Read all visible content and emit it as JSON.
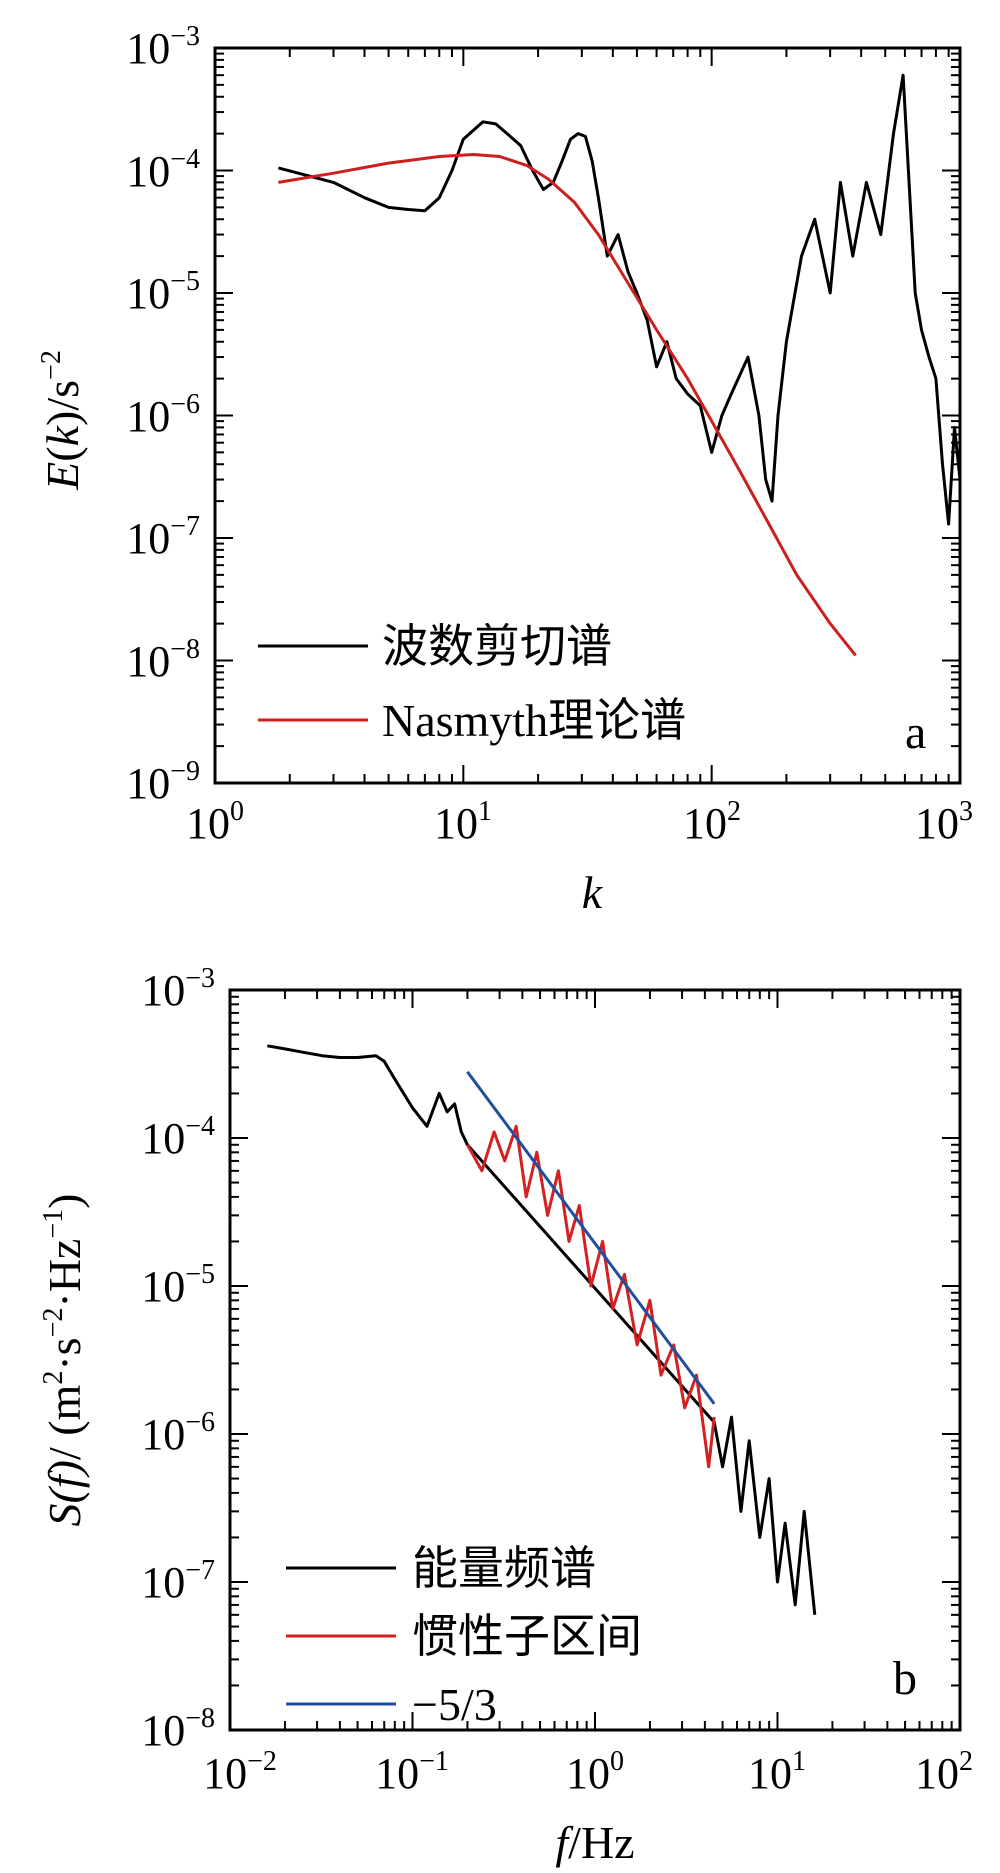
{
  "chart_data": [
    {
      "type": "line",
      "panel_letter": "a",
      "xlabel_italic": "k",
      "ylabel": "E(k)/s",
      "ylabel_italic": "k",
      "ylabel_unit_exp": "−2",
      "x_scale": "log",
      "y_scale": "log",
      "xlim": [
        1,
        1000
      ],
      "ylim": [
        1e-09,
        0.001
      ],
      "x_ticks": [
        {
          "base": "10",
          "exp": "0",
          "value": 1
        },
        {
          "base": "10",
          "exp": "1",
          "value": 10
        },
        {
          "base": "10",
          "exp": "2",
          "value": 100
        },
        {
          "base": "10",
          "exp": "3",
          "value": 1000
        }
      ],
      "y_ticks": [
        {
          "base": "10",
          "exp": "−3",
          "value": 0.001
        },
        {
          "base": "10",
          "exp": "−4",
          "value": 0.0001
        },
        {
          "base": "10",
          "exp": "−5",
          "value": 1e-05
        },
        {
          "base": "10",
          "exp": "−6",
          "value": 1e-06
        },
        {
          "base": "10",
          "exp": "−7",
          "value": 1e-07
        },
        {
          "base": "10",
          "exp": "−8",
          "value": 1e-08
        },
        {
          "base": "10",
          "exp": "−9",
          "value": 1e-09
        }
      ],
      "legend_position": "bottom-left",
      "series": [
        {
          "name": "波数剪切谱",
          "color": "#000000",
          "x": [
            1.8,
            3.0,
            4.0,
            5.0,
            6.0,
            7.0,
            8.0,
            9.0,
            10.0,
            12.0,
            13.5,
            15.0,
            17.0,
            19.0,
            21.0,
            23.0,
            25.0,
            27.0,
            29.0,
            31.0,
            33.0,
            35.0,
            38.0,
            42.0,
            46.0,
            50.0,
            55.0,
            60.0,
            66.0,
            72.0,
            80.0,
            90.0,
            100.0,
            110.0,
            120.0,
            140.0,
            155.0,
            165.0,
            175.0,
            185.0,
            200.0,
            230.0,
            260.0,
            300.0,
            330.0,
            370.0,
            420.0,
            480.0,
            540.0,
            590.0,
            620.0,
            660.0,
            700.0,
            750.0,
            800.0,
            850.0,
            900.0,
            950.0,
            1000.0
          ],
          "y": [
            0.000105,
            8e-05,
            6e-05,
            5e-05,
            4.8e-05,
            4.7e-05,
            6e-05,
            0.0001,
            0.00018,
            0.00025,
            0.00024,
            0.0002,
            0.00016,
            0.0001,
            7e-05,
            8e-05,
            0.00012,
            0.00018,
            0.0002,
            0.00019,
            0.00012,
            6e-05,
            2e-05,
            3e-05,
            1.5e-05,
            1e-05,
            6e-06,
            2.5e-06,
            4e-06,
            2e-06,
            1.5e-06,
            1.2e-06,
            5e-07,
            1e-06,
            1.5e-06,
            3e-06,
            1e-06,
            3e-07,
            2e-07,
            1e-06,
            4e-06,
            2e-05,
            4e-05,
            1e-05,
            8e-05,
            2e-05,
            8e-05,
            3e-05,
            0.0002,
            0.0006,
            0.0001,
            1e-05,
            5e-06,
            3e-06,
            2e-06,
            4e-07,
            1.3e-07,
            8e-07,
            3e-07
          ]
        },
        {
          "name": "Nasmyth理论谱",
          "color": "#cc1f1f",
          "x": [
            1.8,
            3.0,
            5.0,
            8.0,
            11.0,
            14.0,
            18.0,
            22.0,
            28.0,
            35.0,
            45.0,
            60.0,
            80.0,
            100.0,
            130.0,
            170.0,
            220.0,
            300.0,
            380.0
          ],
          "y": [
            8e-05,
            9.5e-05,
            0.000115,
            0.00013,
            0.000135,
            0.00013,
            0.00011,
            8.5e-05,
            5.5e-05,
            3e-05,
            1.3e-05,
            5e-06,
            2e-06,
            9e-07,
            3.5e-07,
            1.3e-07,
            5e-08,
            2e-08,
            1.1e-08
          ]
        }
      ]
    },
    {
      "type": "line",
      "panel_letter": "b",
      "xlabel_italic": "f",
      "xlabel_unit": "/Hz",
      "ylabel_italic": "S(f)",
      "ylabel_units": "/ (m·s·Hz)",
      "ylabel_exp_m": "2",
      "ylabel_exp_s": "−2",
      "ylabel_exp_hz": "−1",
      "x_scale": "log",
      "y_scale": "log",
      "xlim": [
        0.01,
        100
      ],
      "ylim": [
        1e-08,
        0.001
      ],
      "x_ticks": [
        {
          "base": "10",
          "exp": "−2",
          "value": 0.01
        },
        {
          "base": "10",
          "exp": "−1",
          "value": 0.1
        },
        {
          "base": "10",
          "exp": "0",
          "value": 1
        },
        {
          "base": "10",
          "exp": "1",
          "value": 10
        },
        {
          "base": "10",
          "exp": "2",
          "value": 100
        }
      ],
      "y_ticks": [
        {
          "base": "10",
          "exp": "−3",
          "value": 0.001
        },
        {
          "base": "10",
          "exp": "−4",
          "value": 0.0001
        },
        {
          "base": "10",
          "exp": "−5",
          "value": 1e-05
        },
        {
          "base": "10",
          "exp": "−6",
          "value": 1e-06
        },
        {
          "base": "10",
          "exp": "−7",
          "value": 1e-07
        },
        {
          "base": "10",
          "exp": "−8",
          "value": 1e-08
        }
      ],
      "legend_position": "bottom-left",
      "series": [
        {
          "name": "能量频谱",
          "color": "#000000",
          "x": [
            0.016,
            0.02,
            0.025,
            0.032,
            0.04,
            0.05,
            0.063,
            0.07,
            0.08,
            0.1,
            0.12,
            0.14,
            0.155,
            0.17,
            0.185,
            0.2,
            4.5,
            5.0,
            5.6,
            6.3,
            7.0,
            8.0,
            9.0,
            10.0,
            11.0,
            12.5,
            14.0,
            16.0
          ],
          "y": [
            0.00042,
            0.0004,
            0.00038,
            0.00036,
            0.00035,
            0.00035,
            0.00036,
            0.00033,
            0.00025,
            0.00016,
            0.00012,
            0.0002,
            0.00015,
            0.00017,
            0.00011,
            9e-05,
            1.2e-06,
            6e-07,
            1.3e-06,
            3e-07,
            9e-07,
            2e-07,
            5e-07,
            1e-07,
            2.5e-07,
            7e-08,
            3e-07,
            6e-08
          ]
        },
        {
          "name": "惯性子区间",
          "color": "#d42020",
          "x": [
            0.2,
            0.24,
            0.28,
            0.32,
            0.37,
            0.42,
            0.48,
            0.55,
            0.63,
            0.72,
            0.82,
            0.95,
            1.1,
            1.25,
            1.45,
            1.7,
            2.0,
            2.3,
            2.7,
            3.1,
            3.6,
            4.2,
            4.5
          ],
          "y": [
            9e-05,
            6e-05,
            0.00011,
            7e-05,
            0.00012,
            4e-05,
            8e-05,
            3e-05,
            6e-05,
            2e-05,
            3.5e-05,
            1e-05,
            2e-05,
            7e-06,
            1.2e-05,
            4e-06,
            8e-06,
            2.5e-06,
            4e-06,
            1.5e-06,
            2.5e-06,
            6e-07,
            1.3e-06
          ]
        },
        {
          "name": "−5/3",
          "color": "#1f4fa0",
          "x": [
            0.2,
            4.5
          ],
          "y": [
            0.00028,
            1.6e-06
          ]
        }
      ]
    }
  ]
}
